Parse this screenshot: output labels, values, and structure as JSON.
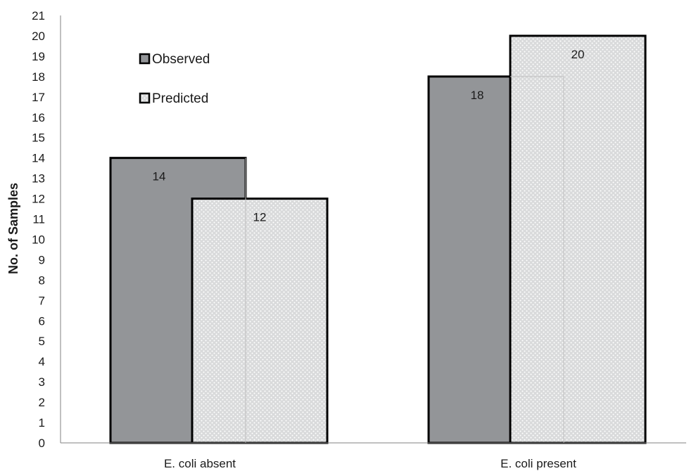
{
  "chart_data": {
    "type": "bar",
    "categories": [
      "E. coli  absent",
      "E. coli present"
    ],
    "series": [
      {
        "name": "Observed",
        "values": [
          14,
          18
        ]
      },
      {
        "name": "Predicted",
        "values": [
          12,
          20
        ]
      }
    ],
    "title": "",
    "xlabel": "",
    "ylabel": "No. of Samples",
    "ylim": [
      0,
      21
    ],
    "ytick_step": 1,
    "grid": false,
    "legend_placement": "top-left",
    "data_labels": true,
    "colors": {
      "observed": "#939598",
      "predicted_fill": "#d9dadb",
      "predicted_dot": "#ffffff",
      "bar_outline": "#000000",
      "axis": "#808080",
      "text": "#1a1a1a"
    }
  }
}
